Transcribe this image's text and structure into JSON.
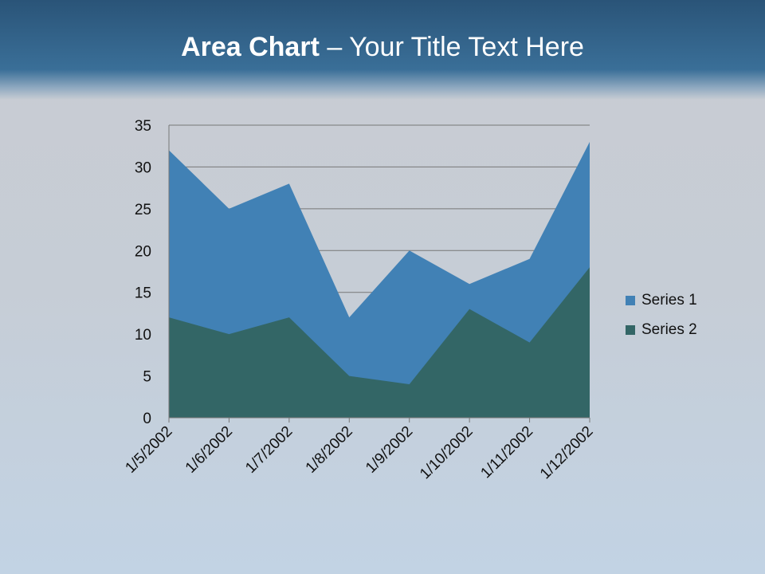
{
  "slide": {
    "title_bold": "Area Chart",
    "title_rest": " – Your Title Text Here"
  },
  "chart_data": {
    "type": "area",
    "title": "",
    "xlabel": "",
    "ylabel": "",
    "categories": [
      "1/5/2002",
      "1/6/2002",
      "1/7/2002",
      "1/8/2002",
      "1/9/2002",
      "1/10/2002",
      "1/11/2002",
      "1/12/2002"
    ],
    "series": [
      {
        "name": "Series 1",
        "color": "#4181b5",
        "values": [
          32,
          25,
          28,
          12,
          20,
          16,
          19,
          33
        ]
      },
      {
        "name": "Series 2",
        "color": "#336666",
        "values": [
          12,
          10,
          12,
          5,
          4,
          13,
          9,
          18
        ]
      }
    ],
    "ylim": [
      0,
      35
    ],
    "yticks": [
      0,
      5,
      10,
      15,
      20,
      25,
      30,
      35
    ],
    "grid": true,
    "legend": "right"
  }
}
